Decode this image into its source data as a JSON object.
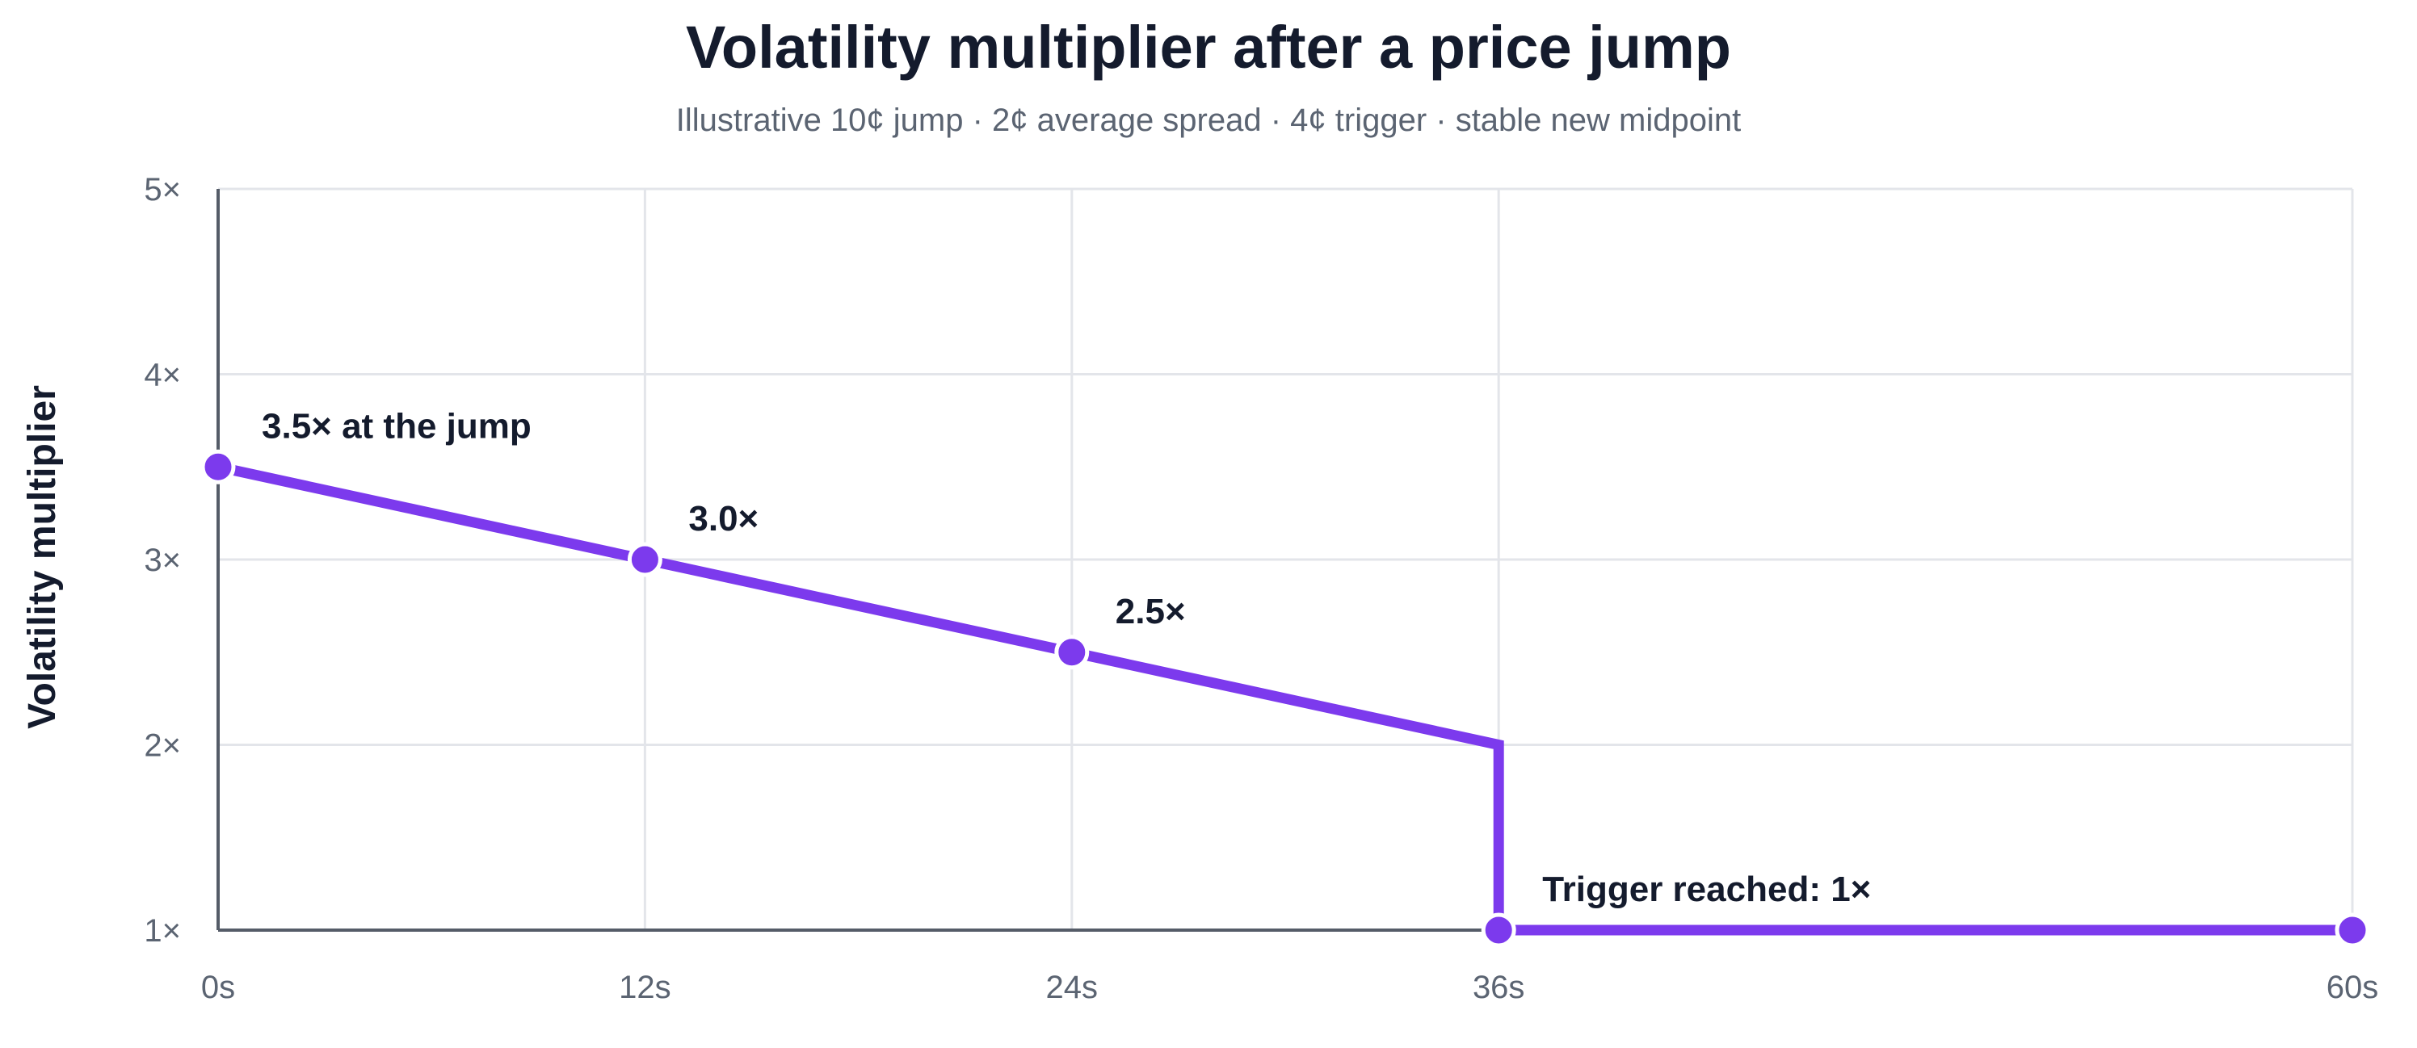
{
  "chart_data": {
    "type": "line",
    "title": "Volatility multiplier after a price jump",
    "subtitle": "Illustrative 10¢ jump · 2¢ average spread · 4¢ trigger · stable new midpoint",
    "xlabel": "",
    "ylabel": "Volatility multiplier",
    "xlim": [
      0,
      60
    ],
    "ylim": [
      1,
      5
    ],
    "x_ticks": [
      {
        "value": 0,
        "label": "0s"
      },
      {
        "value": 12,
        "label": "12s"
      },
      {
        "value": 24,
        "label": "24s"
      },
      {
        "value": 36,
        "label": "36s"
      },
      {
        "value": 60,
        "label": "60s"
      }
    ],
    "y_ticks": [
      {
        "value": 1,
        "label": "1×"
      },
      {
        "value": 2,
        "label": "2×"
      },
      {
        "value": 3,
        "label": "3×"
      },
      {
        "value": 4,
        "label": "4×"
      },
      {
        "value": 5,
        "label": "5×"
      }
    ],
    "grid": true,
    "series": [
      {
        "color": "#7c3aed",
        "line": [
          {
            "x": 0,
            "y": 3.5
          },
          {
            "x": 12,
            "y": 3.0
          },
          {
            "x": 24,
            "y": 2.5
          },
          {
            "x": 36,
            "y": 2.0
          },
          {
            "x": 36,
            "y": 1.0
          },
          {
            "x": 60,
            "y": 1.0
          }
        ],
        "markers": [
          {
            "x": 0,
            "y": 3.5
          },
          {
            "x": 12,
            "y": 3.0
          },
          {
            "x": 24,
            "y": 2.5
          },
          {
            "x": 36,
            "y": 1.0
          },
          {
            "x": 60,
            "y": 1.0
          }
        ]
      }
    ],
    "annotations": [
      {
        "x": 0,
        "y": 3.5,
        "text": "3.5× at the jump"
      },
      {
        "x": 12,
        "y": 3.0,
        "text": "3.0×"
      },
      {
        "x": 24,
        "y": 2.5,
        "text": "2.5×"
      },
      {
        "x": 36,
        "y": 1.0,
        "text": "Trigger reached: 1×"
      }
    ],
    "colors": {
      "grid": "#e3e5ea",
      "axis": "#555c68",
      "marker_stroke": "#ffffff"
    }
  }
}
